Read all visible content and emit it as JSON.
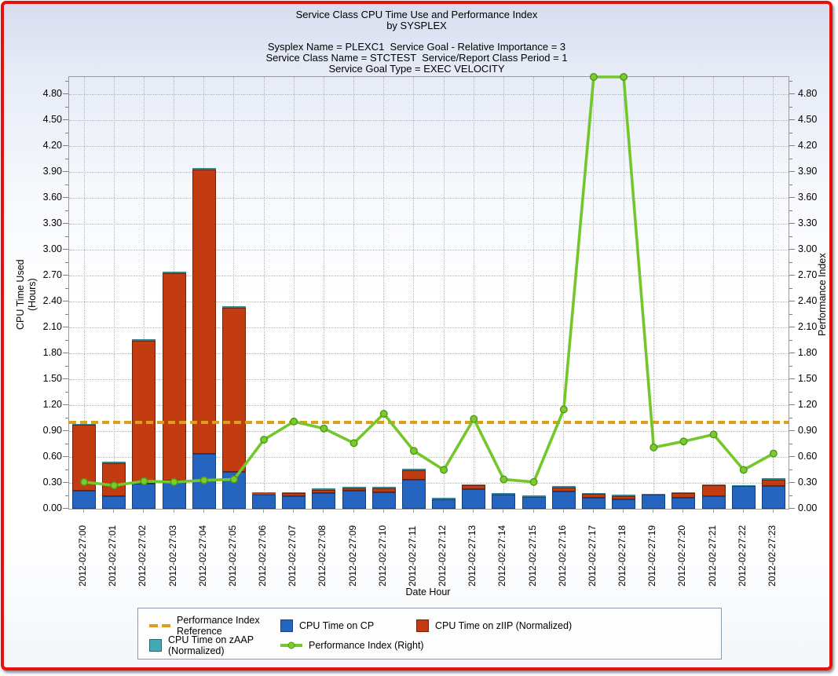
{
  "title": {
    "line1": "Service Class CPU Time Use and Performance Index",
    "line2": "by SYSPLEX"
  },
  "subtitle": {
    "line1": "Sysplex Name = PLEXC1  Service Goal - Relative Importance = 3",
    "line2": "Service Class Name = STCTEST  Service/Report Class Period = 1",
    "line3": "Service Goal Type = EXEC VELOCITY"
  },
  "axes": {
    "left_title_line1": "CPU Time Used",
    "left_title_line2": "(Hours)",
    "right_title": "Performance Index",
    "x_title": "Date Hour",
    "y_min": 0,
    "y_max": 5.0,
    "y_major_step": 0.3,
    "y_minor_step": 0.15,
    "y_tick_labels": [
      "0.00",
      "0.30",
      "0.60",
      "0.90",
      "1.20",
      "1.50",
      "1.80",
      "2.10",
      "2.40",
      "2.70",
      "3.00",
      "3.30",
      "3.60",
      "3.90",
      "4.20",
      "4.50",
      "4.80"
    ],
    "grid": "dotted"
  },
  "colors": {
    "page_border": "#e90f0f",
    "cp_fill": "#2565c0",
    "cp_border": "#15407f",
    "ziip_fill": "#c33b10",
    "ziip_border": "#702007",
    "zaap_fill": "#44a9b5",
    "zaap_border": "#1e6b75",
    "zaap_sliver": "#2f8793",
    "pi_line": "#74c72b",
    "pi_marker_fill": "#7cc932",
    "pi_marker_border": "#4e9a12",
    "reference": "#db9f20",
    "grid": "#b5b5b5",
    "axis": "#9a9a9a"
  },
  "legend": {
    "rows": [
      [
        {
          "swatch": "dashed-line",
          "color": "#db9f20",
          "border": "#db9f20",
          "label": "Performance Index Reference"
        },
        {
          "swatch": "square",
          "color": "#2565c0",
          "border": "#15407f",
          "label": "CPU Time on CP"
        },
        {
          "swatch": "square",
          "color": "#c33b10",
          "border": "#702007",
          "label": "CPU Time on zIIP (Normalized)"
        }
      ],
      [
        {
          "swatch": "square",
          "color": "#44a9b5",
          "border": "#1e6b75",
          "label": "CPU Time on zAAP (Normalized)"
        },
        {
          "swatch": "line-marker",
          "color": "#74c72b",
          "border": "#4e9a12",
          "label": "Performance Index (Right)"
        }
      ]
    ]
  },
  "chart_data": {
    "type": "bar",
    "subtype": "stacked-bars-with-line",
    "title": "Service Class CPU Time Use and Performance Index by SYSPLEX",
    "xlabel": "Date Hour",
    "ylabel_left": "CPU Time Used (Hours)",
    "ylabel_right": "Performance Index",
    "ylim": [
      0,
      5.0
    ],
    "categories": [
      "2012-02-27:00",
      "2012-02-27:01",
      "2012-02-27:02",
      "2012-02-27:03",
      "2012-02-27:04",
      "2012-02-27:05",
      "2012-02-27:06",
      "2012-02-27:07",
      "2012-02-27:08",
      "2012-02-27:09",
      "2012-02-27:10",
      "2012-02-27:11",
      "2012-02-27:12",
      "2012-02-27:13",
      "2012-02-27:14",
      "2012-02-27:15",
      "2012-02-27:16",
      "2012-02-27:17",
      "2012-02-27:18",
      "2012-02-27:19",
      "2012-02-27:20",
      "2012-02-27:21",
      "2012-02-27:22",
      "2012-02-27:23"
    ],
    "series": [
      {
        "name": "CPU Time on CP",
        "type": "bar",
        "axis": "left",
        "values": [
          0.21,
          0.15,
          0.29,
          0.33,
          0.64,
          0.43,
          0.16,
          0.15,
          0.18,
          0.21,
          0.19,
          0.34,
          0.11,
          0.23,
          0.16,
          0.14,
          0.2,
          0.13,
          0.11,
          0.16,
          0.13,
          0.15,
          0.26,
          0.26
        ]
      },
      {
        "name": "CPU Time on zIIP (Normalized)",
        "type": "bar",
        "axis": "left",
        "values": [
          0.76,
          0.38,
          1.66,
          2.4,
          3.29,
          1.9,
          0.02,
          0.03,
          0.04,
          0.03,
          0.05,
          0.11,
          0.0,
          0.04,
          0.01,
          0.0,
          0.05,
          0.04,
          0.04,
          0.0,
          0.05,
          0.12,
          0.0,
          0.08
        ]
      },
      {
        "name": "CPU Time on zAAP (Normalized)",
        "type": "bar",
        "axis": "left",
        "values": [
          0.01,
          0.01,
          0.01,
          0.01,
          0.01,
          0.01,
          0.01,
          0.01,
          0.01,
          0.01,
          0.01,
          0.01,
          0.01,
          0.01,
          0.01,
          0.01,
          0.01,
          0.01,
          0.01,
          0.01,
          0.01,
          0.01,
          0.01,
          0.01
        ]
      },
      {
        "name": "Performance Index (Right)",
        "type": "line",
        "axis": "right",
        "values": [
          0.31,
          0.27,
          0.32,
          0.31,
          0.33,
          0.34,
          0.8,
          1.01,
          0.93,
          0.76,
          1.1,
          0.67,
          0.45,
          1.04,
          0.34,
          0.31,
          1.15,
          5.0,
          5.0,
          0.71,
          0.78,
          0.86,
          0.45,
          0.64
        ]
      }
    ],
    "reference_line": {
      "name": "Performance Index Reference",
      "value": 1.0,
      "style": "dashed"
    },
    "legend_position": "bottom"
  }
}
